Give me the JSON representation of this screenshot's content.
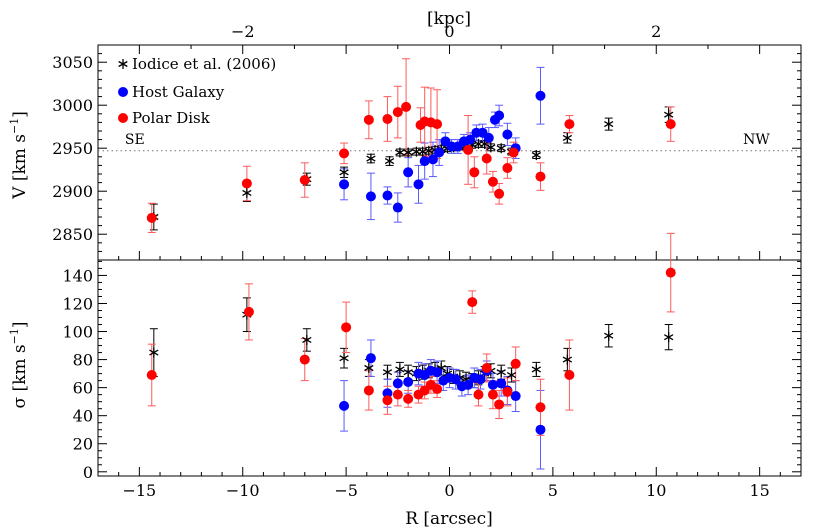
{
  "chart_data": [
    {
      "type": "scatter",
      "panel": "top",
      "ylabel": "V [km s^-1]",
      "ylabel_parts": {
        "main": "V [km s",
        "sup": "−1",
        "close": "]"
      },
      "xlim": [
        -17,
        17
      ],
      "ylim": [
        2820,
        3070
      ],
      "yticks": [
        2850,
        2900,
        2950,
        3000,
        3050
      ],
      "top_axis": {
        "label": "[kpc]",
        "ticks": [
          -2,
          0,
          2
        ],
        "tick_positions_arcsec": [
          -10,
          0,
          10
        ]
      },
      "reference_line": {
        "y": 2947,
        "style": "dotted"
      },
      "annotations": [
        {
          "text": "SE",
          "x": -15.7,
          "y": 2955
        },
        {
          "text": "NW",
          "x": 14.2,
          "y": 2955
        }
      ],
      "legend": {
        "placement": "top-left",
        "entries": [
          "Iodice et al. (2006)",
          "Host Galaxy",
          "Polar Disk"
        ]
      },
      "series": [
        {
          "name": "Iodice et al. (2006)",
          "marker": "asterisk",
          "color": "#000000",
          "points": [
            [
              -14.3,
              2870,
              15
            ],
            [
              -9.8,
              2898,
              10
            ],
            [
              -6.9,
              2914,
              7
            ],
            [
              -5.1,
              2922,
              6
            ],
            [
              -3.8,
              2938,
              5
            ],
            [
              -2.9,
              2935,
              5
            ],
            [
              -2.4,
              2945,
              4
            ],
            [
              -2.0,
              2945,
              4
            ],
            [
              -1.6,
              2946,
              4
            ],
            [
              -1.3,
              2946,
              4
            ],
            [
              -1.0,
              2947,
              4
            ],
            [
              -0.7,
              2948,
              4
            ],
            [
              -0.4,
              2949,
              4
            ],
            [
              -0.1,
              2950,
              4
            ],
            [
              0.2,
              2951,
              4
            ],
            [
              0.5,
              2952,
              4
            ],
            [
              0.8,
              2953,
              4
            ],
            [
              1.1,
              2954,
              4
            ],
            [
              1.4,
              2955,
              4
            ],
            [
              1.7,
              2955,
              4
            ],
            [
              2.0,
              2951,
              4
            ],
            [
              2.5,
              2950,
              4
            ],
            [
              3.0,
              2946,
              4
            ],
            [
              4.2,
              2942,
              4
            ],
            [
              5.7,
              2962,
              6
            ],
            [
              7.7,
              2978,
              7
            ],
            [
              10.6,
              2989,
              9
            ]
          ]
        },
        {
          "name": "Host Galaxy",
          "marker": "circle",
          "color": "#0000ff",
          "points": [
            [
              -5.1,
              2908,
              18
            ],
            [
              -3.8,
              2894,
              27
            ],
            [
              -3.0,
              2895,
              10
            ],
            [
              -2.5,
              2881,
              17
            ],
            [
              -2.0,
              2922,
              17
            ],
            [
              -1.5,
              2908,
              22
            ],
            [
              -1.2,
              2935,
              21
            ],
            [
              -0.8,
              2937,
              20
            ],
            [
              -0.5,
              2945,
              15
            ],
            [
              -0.2,
              2958,
              10
            ],
            [
              0.1,
              2952,
              8
            ],
            [
              0.4,
              2952,
              8
            ],
            [
              0.7,
              2958,
              8
            ],
            [
              1.0,
              2960,
              8
            ],
            [
              1.3,
              2968,
              9
            ],
            [
              1.6,
              2968,
              10
            ],
            [
              1.9,
              2962,
              12
            ],
            [
              2.2,
              2983,
              9
            ],
            [
              2.4,
              2988,
              12
            ],
            [
              2.8,
              2966,
              13
            ],
            [
              3.2,
              2950,
              12
            ],
            [
              4.4,
              3011,
              33
            ]
          ]
        },
        {
          "name": "Polar Disk",
          "marker": "circle",
          "color": "#ff0000",
          "points": [
            [
              -14.4,
              2869,
              17
            ],
            [
              -9.8,
              2909,
              20
            ],
            [
              -7.0,
              2913,
              20
            ],
            [
              -5.1,
              2944,
              12
            ],
            [
              -3.9,
              2983,
              22
            ],
            [
              -3.0,
              2984,
              26
            ],
            [
              -2.5,
              2992,
              30
            ],
            [
              -2.1,
              2998,
              56
            ],
            [
              -1.4,
              2977,
              20
            ],
            [
              -1.2,
              2981,
              40
            ],
            [
              -0.9,
              2980,
              40
            ],
            [
              -0.6,
              2978,
              40
            ],
            [
              0.9,
              2948,
              40
            ],
            [
              1.2,
              2922,
              18
            ],
            [
              1.8,
              2938,
              18
            ],
            [
              2.1,
              2911,
              12
            ],
            [
              2.4,
              2897,
              12
            ],
            [
              2.8,
              2927,
              12
            ],
            [
              3.1,
              2945,
              12
            ],
            [
              4.4,
              2917,
              16
            ],
            [
              5.8,
              2978,
              10
            ],
            [
              10.7,
              2978,
              20
            ]
          ]
        }
      ]
    },
    {
      "type": "scatter",
      "panel": "bottom",
      "ylabel": "σ [km s^-1]",
      "ylabel_parts": {
        "main": "σ [km s",
        "sup": "−1",
        "close": "]"
      },
      "xlabel": "R [arcsec]",
      "xlim": [
        -17,
        17
      ],
      "xticks": [
        -15,
        -10,
        -5,
        0,
        5,
        10,
        15
      ],
      "ylim": [
        -3,
        151
      ],
      "yticks": [
        0,
        20,
        40,
        60,
        80,
        100,
        120,
        140
      ],
      "series": [
        {
          "name": "Iodice et al. (2006)",
          "marker": "asterisk",
          "color": "#000000",
          "points": [
            [
              -14.3,
              85,
              17
            ],
            [
              -9.8,
              112,
              12
            ],
            [
              -6.9,
              94,
              8
            ],
            [
              -5.1,
              81,
              7
            ],
            [
              -3.9,
              74,
              6
            ],
            [
              -3.0,
              71,
              5
            ],
            [
              -2.4,
              73,
              5
            ],
            [
              -2.0,
              71,
              5
            ],
            [
              -1.6,
              70,
              5
            ],
            [
              -1.3,
              71,
              5
            ],
            [
              -1.0,
              72,
              5
            ],
            [
              -0.7,
              73,
              5
            ],
            [
              -0.4,
              74,
              5
            ],
            [
              -0.1,
              70,
              5
            ],
            [
              0.2,
              68,
              5
            ],
            [
              0.5,
              67,
              5
            ],
            [
              0.8,
              66,
              5
            ],
            [
              1.1,
              65,
              5
            ],
            [
              1.4,
              67,
              5
            ],
            [
              1.7,
              70,
              5
            ],
            [
              2.0,
              72,
              5
            ],
            [
              2.5,
              71,
              5
            ],
            [
              3.0,
              69,
              5
            ],
            [
              4.2,
              73,
              5
            ],
            [
              5.7,
              80,
              8
            ],
            [
              7.7,
              97,
              8
            ],
            [
              10.6,
              96,
              9
            ]
          ]
        },
        {
          "name": "Host Galaxy",
          "marker": "circle",
          "color": "#0000ff",
          "points": [
            [
              -5.1,
              47,
              18
            ],
            [
              -3.8,
              81,
              13
            ],
            [
              -3.0,
              56,
              10
            ],
            [
              -2.5,
              63,
              8
            ],
            [
              -2.0,
              64,
              8
            ],
            [
              -1.5,
              70,
              8
            ],
            [
              -1.2,
              69,
              8
            ],
            [
              -0.9,
              72,
              8
            ],
            [
              -0.6,
              71,
              8
            ],
            [
              -0.3,
              65,
              7
            ],
            [
              0.0,
              67,
              7
            ],
            [
              0.3,
              66,
              7
            ],
            [
              0.6,
              61,
              7
            ],
            [
              0.9,
              62,
              7
            ],
            [
              1.2,
              67,
              7
            ],
            [
              1.5,
              66,
              7
            ],
            [
              1.8,
              72,
              7
            ],
            [
              2.1,
              62,
              8
            ],
            [
              2.5,
              63,
              9
            ],
            [
              2.8,
              58,
              10
            ],
            [
              3.2,
              54,
              11
            ],
            [
              4.4,
              30,
              28
            ]
          ]
        },
        {
          "name": "Polar Disk",
          "marker": "circle",
          "color": "#ff0000",
          "points": [
            [
              -14.4,
              69,
              22
            ],
            [
              -9.7,
              114,
              20
            ],
            [
              -7.0,
              80,
              15
            ],
            [
              -5.0,
              103,
              18
            ],
            [
              -3.9,
              58,
              14
            ],
            [
              -3.0,
              51,
              10
            ],
            [
              -2.5,
              55,
              8
            ],
            [
              -2.0,
              52,
              6
            ],
            [
              -1.5,
              55,
              6
            ],
            [
              -1.2,
              58,
              6
            ],
            [
              -0.9,
              62,
              6
            ],
            [
              -0.6,
              59,
              6
            ],
            [
              1.1,
              121,
              8
            ],
            [
              1.4,
              55,
              8
            ],
            [
              1.8,
              74,
              10
            ],
            [
              2.1,
              55,
              10
            ],
            [
              2.4,
              48,
              10
            ],
            [
              2.8,
              57,
              10
            ],
            [
              3.2,
              77,
              12
            ],
            [
              4.4,
              46,
              20
            ],
            [
              5.8,
              69,
              25
            ],
            [
              10.7,
              142,
              28
            ]
          ]
        }
      ]
    }
  ]
}
